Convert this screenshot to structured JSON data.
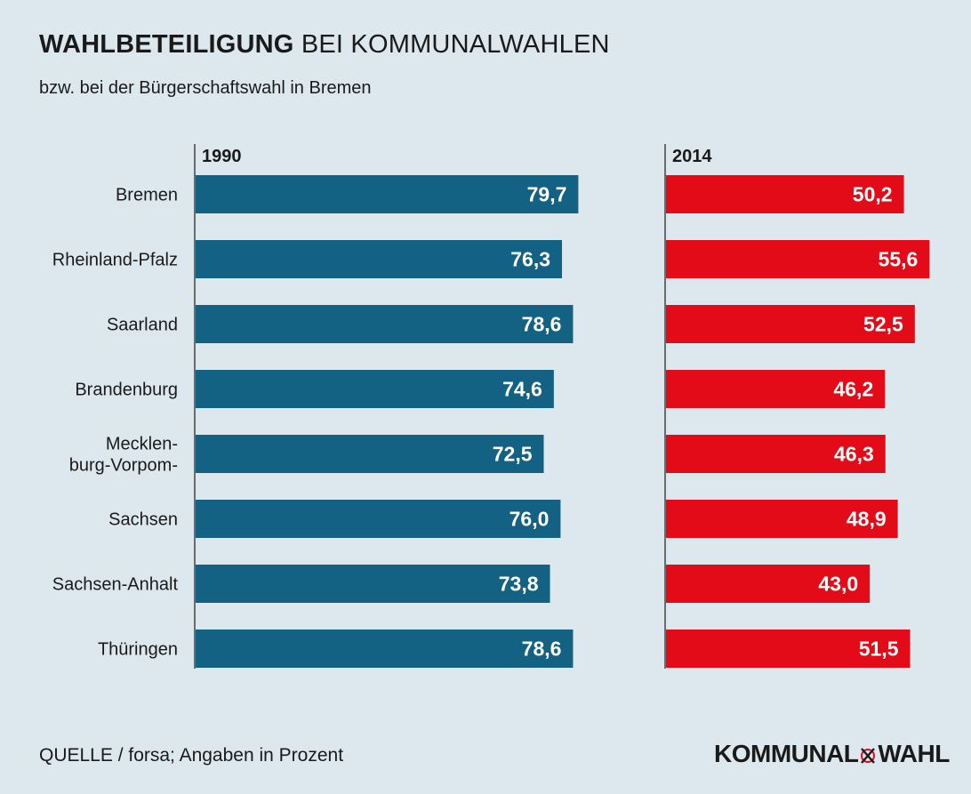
{
  "title": {
    "bold": "WAHLBETEILIGUNG",
    "rest": "BEI KOMMUNALWAHLEN"
  },
  "subtitle": "bzw. bei der Bürgerschaftswahl in Bremen",
  "chart_data": {
    "type": "bar",
    "orientation": "horizontal",
    "categories": [
      "Bremen",
      "Rheinland-Pfalz",
      "Saarland",
      "Brandenburg",
      "Mecklen-\nburg-Vorpom-",
      "Sachsen",
      "Sachsen-Anhalt",
      "Thüringen"
    ],
    "series": [
      {
        "name": "1990",
        "color": "#136183",
        "values": [
          79.7,
          76.3,
          78.6,
          74.6,
          72.5,
          76.0,
          73.8,
          78.6
        ],
        "labels": [
          "79,7",
          "76,3",
          "78,6",
          "74,6",
          "72,5",
          "76,0",
          "73,8",
          "78,6"
        ]
      },
      {
        "name": "2014",
        "color": "#e20b17",
        "values": [
          50.2,
          55.6,
          52.5,
          46.2,
          46.3,
          48.9,
          43.0,
          51.5
        ],
        "labels": [
          "50,2",
          "55,6",
          "52,5",
          "46,2",
          "46,3",
          "48,9",
          "43,0",
          "51,5"
        ]
      }
    ],
    "xlim": [
      0,
      100
    ],
    "unit": "Prozent",
    "grid": false,
    "legend": "column headers above each panel"
  },
  "source": "QUELLE / forsa; Angaben in Prozent",
  "logo": {
    "left": "KOMMUNAL",
    "right": "WAHL"
  },
  "colors": {
    "background": "#dce8ee",
    "blue": "#136183",
    "red": "#e20b17"
  }
}
